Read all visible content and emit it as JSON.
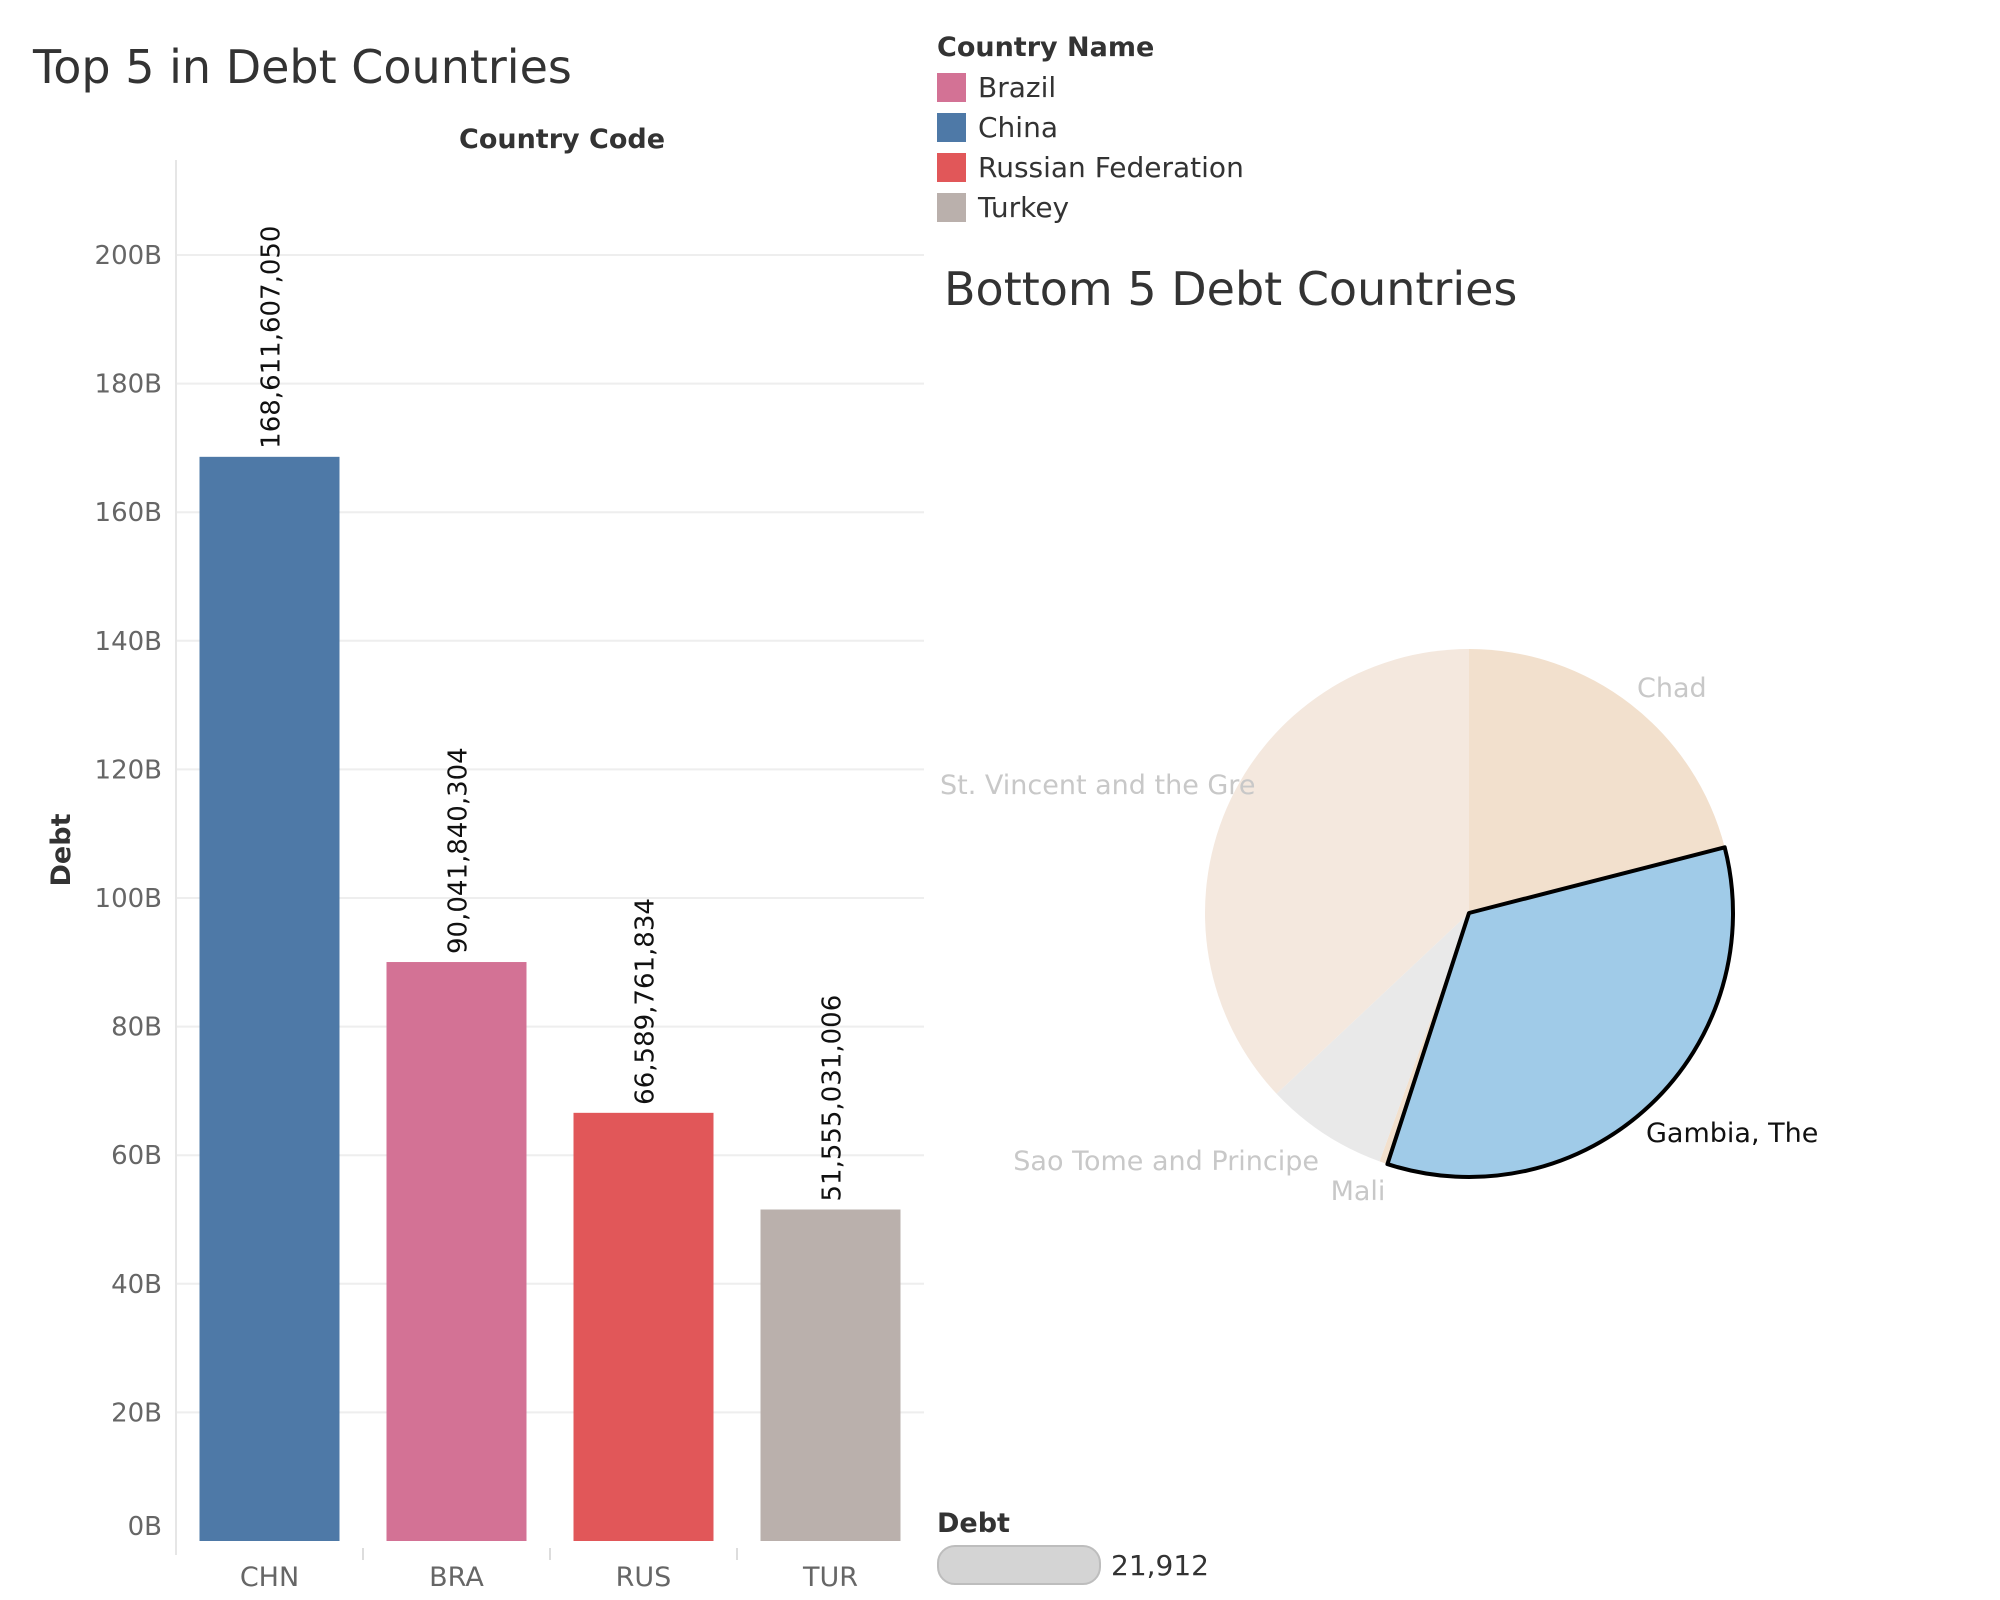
{
  "chart_data": [
    {
      "type": "bar",
      "title": "Top 5 in Debt Countries",
      "column_header": "Country Code",
      "ylabel": "Debt",
      "ylim": [
        0,
        215000000000
      ],
      "yticks": [
        0,
        20000000000,
        40000000000,
        60000000000,
        80000000000,
        100000000000,
        120000000000,
        140000000000,
        160000000000,
        180000000000,
        200000000000
      ],
      "ytick_labels": [
        "0B",
        "20B",
        "40B",
        "60B",
        "80B",
        "100B",
        "120B",
        "140B",
        "160B",
        "180B",
        "200B"
      ],
      "grid": true,
      "categories": [
        "CHN",
        "BRA",
        "RUS",
        "TUR"
      ],
      "values": [
        168611607050,
        90041840304,
        66589761834,
        51555031006
      ],
      "value_labels": [
        "168,611,607,050",
        "90,041,840,304",
        "66,589,761,834",
        "51,555,031,006"
      ],
      "colors": [
        "#4e79a7",
        "#d37295",
        "#e15759",
        "#bab0ac"
      ]
    },
    {
      "type": "pie",
      "title": "Bottom 5 Debt Countries",
      "slices": [
        {
          "label": "Chad",
          "value": 21,
          "color": "#f2e0cd",
          "highlighted": false
        },
        {
          "label": "Gambia, The",
          "value": 34,
          "color": "#a0cbe8",
          "highlighted": true
        },
        {
          "label": "Mali",
          "value": 0.5,
          "color": "#f2e0cd",
          "highlighted": false
        },
        {
          "label": "Sao Tome and Principe",
          "value": 7.5,
          "color": "#e9e9e9",
          "highlighted": false
        },
        {
          "label": "St. Vincent and the Gre",
          "value": 37,
          "color": "#f4e8de",
          "highlighted": false
        }
      ]
    }
  ],
  "color_legend": {
    "title": "Country Name",
    "items": [
      {
        "label": "Brazil",
        "color": "#d37295"
      },
      {
        "label": "China",
        "color": "#4e79a7"
      },
      {
        "label": "Russian Federation",
        "color": "#e15759"
      },
      {
        "label": "Turkey",
        "color": "#bab0ac"
      }
    ]
  },
  "size_legend": {
    "title": "Debt",
    "value": "21,912"
  }
}
